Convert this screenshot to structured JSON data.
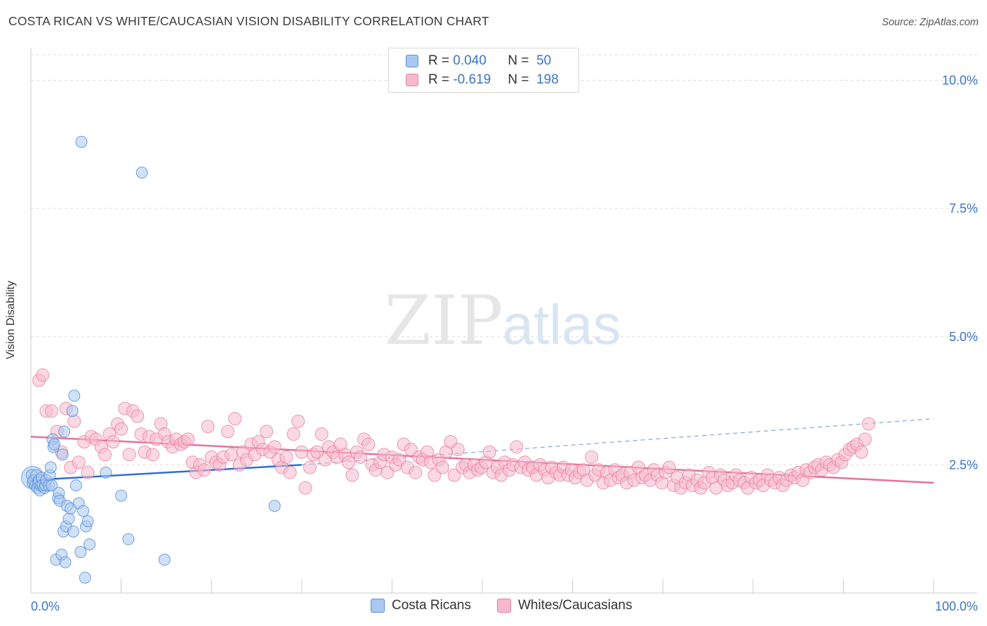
{
  "title": "COSTA RICAN VS WHITE/CAUCASIAN VISION DISABILITY CORRELATION CHART",
  "source": "Source: ZipAtlas.com",
  "watermark": {
    "zip": "ZIP",
    "atlas": "atlas"
  },
  "legend": {
    "rows": [
      {
        "r_label": "R =",
        "r_value": "0.040",
        "n_label": "N =",
        "n_value": "50"
      },
      {
        "r_label": "R =",
        "r_value": "-0.619",
        "n_label": "N =",
        "n_value": "198"
      }
    ]
  },
  "bottom_legend": {
    "series1": "Costa Ricans",
    "series2": "Whites/Caucasians"
  },
  "colors": {
    "blue_fill": "#a9c8f0",
    "blue_stroke": "#5a8fd6",
    "blue_line": "#2f6fd0",
    "pink_fill": "#f6b9cc",
    "pink_stroke": "#e87fa0",
    "pink_line": "#e8709a",
    "tick_label": "#3a75c4",
    "grid": "#dddddd"
  },
  "chart_data": {
    "type": "scatter",
    "title": "COSTA RICAN VS WHITE/CAUCASIAN VISION DISABILITY CORRELATION CHART",
    "xlabel": "",
    "ylabel": "Vision Disability",
    "xlim": [
      0,
      100
    ],
    "ylim": [
      0,
      10.5
    ],
    "x_tick_labels": [
      "0.0%",
      "100.0%"
    ],
    "y_tick_labels": [
      "2.5%",
      "5.0%",
      "7.5%",
      "10.0%"
    ],
    "y_ticks": [
      2.5,
      5.0,
      7.5,
      10.0
    ],
    "grid": true,
    "series": [
      {
        "name": "Costa Ricans",
        "r": 0.04,
        "n": 50,
        "trend": {
          "x": [
            0,
            30
          ],
          "y": [
            2.2,
            2.5
          ],
          "dashed_extension": {
            "x": [
              30,
              100
            ],
            "y": [
              2.5,
              3.4
            ]
          }
        },
        "points": [
          [
            0.1,
            2.3
          ],
          [
            0.2,
            2.15
          ],
          [
            0.3,
            2.2
          ],
          [
            0.5,
            2.1
          ],
          [
            0.6,
            2.3
          ],
          [
            0.7,
            2.05
          ],
          [
            0.8,
            2.15
          ],
          [
            0.9,
            2.2
          ],
          [
            1.0,
            2.0
          ],
          [
            1.1,
            2.1
          ],
          [
            1.2,
            2.25
          ],
          [
            1.3,
            2.1
          ],
          [
            1.5,
            2.05
          ],
          [
            1.6,
            2.1
          ],
          [
            1.7,
            2.2
          ],
          [
            2.0,
            2.1
          ],
          [
            2.1,
            2.3
          ],
          [
            2.2,
            2.45
          ],
          [
            2.3,
            2.1
          ],
          [
            2.4,
            3.0
          ],
          [
            2.5,
            2.85
          ],
          [
            2.6,
            2.9
          ],
          [
            2.8,
            0.65
          ],
          [
            3.0,
            1.85
          ],
          [
            3.1,
            1.95
          ],
          [
            3.2,
            1.8
          ],
          [
            3.4,
            0.75
          ],
          [
            3.5,
            2.7
          ],
          [
            3.6,
            1.2
          ],
          [
            3.7,
            3.15
          ],
          [
            3.8,
            0.6
          ],
          [
            3.9,
            1.3
          ],
          [
            4.0,
            1.7
          ],
          [
            4.2,
            1.45
          ],
          [
            4.4,
            1.65
          ],
          [
            4.6,
            3.55
          ],
          [
            4.7,
            1.2
          ],
          [
            4.8,
            3.85
          ],
          [
            5.0,
            2.1
          ],
          [
            5.3,
            1.75
          ],
          [
            5.5,
            0.8
          ],
          [
            5.6,
            8.8
          ],
          [
            5.8,
            1.6
          ],
          [
            6.0,
            0.3
          ],
          [
            6.1,
            1.3
          ],
          [
            6.3,
            1.4
          ],
          [
            6.5,
            0.95
          ],
          [
            8.3,
            2.35
          ],
          [
            10.0,
            1.9
          ],
          [
            10.8,
            1.05
          ],
          [
            12.3,
            8.2
          ],
          [
            14.8,
            0.65
          ],
          [
            27.0,
            1.7
          ]
        ]
      },
      {
        "name": "Whites/Caucasians",
        "r": -0.619,
        "n": 198,
        "trend": {
          "x": [
            0,
            100
          ],
          "y": [
            3.05,
            2.15
          ]
        },
        "points": [
          [
            0.9,
            4.15
          ],
          [
            1.3,
            4.25
          ],
          [
            1.7,
            3.55
          ],
          [
            2.3,
            3.55
          ],
          [
            2.9,
            3.15
          ],
          [
            3.4,
            2.75
          ],
          [
            3.9,
            3.6
          ],
          [
            4.4,
            2.45
          ],
          [
            4.8,
            3.35
          ],
          [
            5.3,
            2.55
          ],
          [
            5.9,
            2.95
          ],
          [
            6.3,
            2.35
          ],
          [
            6.7,
            3.05
          ],
          [
            7.2,
            3.0
          ],
          [
            7.8,
            2.85
          ],
          [
            8.2,
            2.7
          ],
          [
            8.7,
            3.1
          ],
          [
            9.1,
            2.95
          ],
          [
            9.6,
            3.3
          ],
          [
            10.0,
            3.2
          ],
          [
            10.4,
            3.6
          ],
          [
            10.9,
            2.7
          ],
          [
            11.3,
            3.55
          ],
          [
            11.8,
            3.45
          ],
          [
            12.2,
            3.1
          ],
          [
            12.6,
            2.75
          ],
          [
            13.1,
            3.05
          ],
          [
            13.5,
            2.7
          ],
          [
            13.9,
            3.0
          ],
          [
            14.4,
            3.3
          ],
          [
            14.8,
            3.1
          ],
          [
            15.2,
            2.95
          ],
          [
            15.7,
            2.85
          ],
          [
            16.1,
            3.0
          ],
          [
            16.6,
            2.9
          ],
          [
            17.0,
            2.95
          ],
          [
            17.4,
            3.0
          ],
          [
            17.9,
            2.55
          ],
          [
            18.3,
            2.35
          ],
          [
            18.7,
            2.5
          ],
          [
            19.2,
            2.4
          ],
          [
            19.6,
            3.25
          ],
          [
            20.0,
            2.65
          ],
          [
            20.5,
            2.55
          ],
          [
            20.9,
            2.5
          ],
          [
            21.3,
            2.65
          ],
          [
            21.8,
            3.15
          ],
          [
            22.2,
            2.7
          ],
          [
            22.6,
            3.4
          ],
          [
            23.1,
            2.5
          ],
          [
            23.5,
            2.75
          ],
          [
            23.9,
            2.6
          ],
          [
            24.4,
            2.9
          ],
          [
            24.8,
            2.7
          ],
          [
            25.2,
            2.95
          ],
          [
            25.7,
            2.8
          ],
          [
            26.1,
            3.15
          ],
          [
            26.5,
            2.75
          ],
          [
            27.0,
            2.85
          ],
          [
            27.4,
            2.6
          ],
          [
            27.8,
            2.45
          ],
          [
            28.3,
            2.65
          ],
          [
            28.7,
            2.35
          ],
          [
            29.1,
            3.1
          ],
          [
            29.6,
            3.35
          ],
          [
            30.0,
            2.75
          ],
          [
            30.4,
            2.05
          ],
          [
            30.9,
            2.45
          ],
          [
            31.3,
            2.7
          ],
          [
            31.7,
            2.75
          ],
          [
            32.2,
            3.1
          ],
          [
            32.6,
            2.6
          ],
          [
            33.0,
            2.85
          ],
          [
            33.5,
            2.75
          ],
          [
            33.9,
            2.65
          ],
          [
            34.3,
            2.9
          ],
          [
            34.8,
            2.7
          ],
          [
            35.2,
            2.55
          ],
          [
            35.6,
            2.3
          ],
          [
            36.1,
            2.75
          ],
          [
            36.5,
            2.65
          ],
          [
            36.9,
            3.0
          ],
          [
            37.4,
            2.9
          ],
          [
            37.8,
            2.5
          ],
          [
            38.2,
            2.4
          ],
          [
            38.7,
            2.55
          ],
          [
            39.1,
            2.7
          ],
          [
            39.5,
            2.35
          ],
          [
            40.0,
            2.65
          ],
          [
            40.4,
            2.5
          ],
          [
            40.8,
            2.6
          ],
          [
            41.3,
            2.9
          ],
          [
            41.7,
            2.45
          ],
          [
            42.1,
            2.8
          ],
          [
            42.6,
            2.35
          ],
          [
            43.0,
            2.65
          ],
          [
            43.4,
            2.6
          ],
          [
            43.9,
            2.75
          ],
          [
            44.3,
            2.55
          ],
          [
            44.7,
            2.3
          ],
          [
            45.2,
            2.6
          ],
          [
            45.6,
            2.45
          ],
          [
            46.0,
            2.75
          ],
          [
            46.5,
            2.95
          ],
          [
            46.9,
            2.3
          ],
          [
            47.3,
            2.8
          ],
          [
            47.8,
            2.45
          ],
          [
            48.2,
            2.5
          ],
          [
            48.6,
            2.35
          ],
          [
            49.1,
            2.5
          ],
          [
            49.5,
            2.4
          ],
          [
            49.9,
            2.45
          ],
          [
            50.4,
            2.55
          ],
          [
            50.8,
            2.75
          ],
          [
            51.2,
            2.35
          ],
          [
            51.7,
            2.45
          ],
          [
            52.1,
            2.3
          ],
          [
            52.5,
            2.55
          ],
          [
            53.0,
            2.4
          ],
          [
            53.4,
            2.5
          ],
          [
            53.8,
            2.85
          ],
          [
            54.3,
            2.45
          ],
          [
            54.7,
            2.55
          ],
          [
            55.1,
            2.4
          ],
          [
            55.6,
            2.45
          ],
          [
            56.0,
            2.3
          ],
          [
            56.4,
            2.5
          ],
          [
            56.9,
            2.4
          ],
          [
            57.3,
            2.25
          ],
          [
            57.7,
            2.45
          ],
          [
            58.2,
            2.35
          ],
          [
            58.6,
            2.3
          ],
          [
            59.0,
            2.45
          ],
          [
            59.5,
            2.3
          ],
          [
            59.9,
            2.4
          ],
          [
            60.3,
            2.25
          ],
          [
            60.8,
            2.35
          ],
          [
            61.2,
            2.4
          ],
          [
            61.6,
            2.2
          ],
          [
            62.1,
            2.65
          ],
          [
            62.5,
            2.3
          ],
          [
            62.9,
            2.4
          ],
          [
            63.4,
            2.15
          ],
          [
            63.8,
            2.35
          ],
          [
            64.2,
            2.2
          ],
          [
            64.7,
            2.4
          ],
          [
            65.1,
            2.25
          ],
          [
            65.5,
            2.3
          ],
          [
            66.0,
            2.15
          ],
          [
            66.4,
            2.35
          ],
          [
            66.8,
            2.2
          ],
          [
            67.3,
            2.45
          ],
          [
            67.7,
            2.25
          ],
          [
            68.1,
            2.3
          ],
          [
            68.6,
            2.2
          ],
          [
            69.0,
            2.4
          ],
          [
            69.4,
            2.3
          ],
          [
            69.9,
            2.15
          ],
          [
            70.3,
            2.35
          ],
          [
            70.7,
            2.45
          ],
          [
            71.2,
            2.1
          ],
          [
            71.6,
            2.25
          ],
          [
            72.0,
            2.05
          ],
          [
            72.5,
            2.15
          ],
          [
            72.9,
            2.3
          ],
          [
            73.3,
            2.1
          ],
          [
            73.8,
            2.2
          ],
          [
            74.2,
            2.05
          ],
          [
            74.6,
            2.15
          ],
          [
            75.1,
            2.35
          ],
          [
            75.5,
            2.25
          ],
          [
            75.9,
            2.05
          ],
          [
            76.4,
            2.3
          ],
          [
            76.8,
            2.2
          ],
          [
            77.2,
            2.1
          ],
          [
            77.7,
            2.15
          ],
          [
            78.1,
            2.3
          ],
          [
            78.5,
            2.2
          ],
          [
            79.0,
            2.15
          ],
          [
            79.4,
            2.05
          ],
          [
            79.8,
            2.25
          ],
          [
            80.3,
            2.15
          ],
          [
            80.7,
            2.2
          ],
          [
            81.1,
            2.1
          ],
          [
            81.6,
            2.3
          ],
          [
            82.0,
            2.2
          ],
          [
            82.4,
            2.15
          ],
          [
            82.9,
            2.25
          ],
          [
            83.3,
            2.1
          ],
          [
            83.7,
            2.2
          ],
          [
            84.2,
            2.3
          ],
          [
            84.6,
            2.25
          ],
          [
            85.0,
            2.35
          ],
          [
            85.5,
            2.2
          ],
          [
            85.9,
            2.4
          ],
          [
            86.3,
            2.35
          ],
          [
            86.8,
            2.45
          ],
          [
            87.2,
            2.5
          ],
          [
            87.6,
            2.4
          ],
          [
            88.1,
            2.55
          ],
          [
            88.5,
            2.5
          ],
          [
            88.9,
            2.45
          ],
          [
            89.4,
            2.6
          ],
          [
            89.8,
            2.55
          ],
          [
            90.2,
            2.7
          ],
          [
            90.7,
            2.8
          ],
          [
            91.1,
            2.85
          ],
          [
            91.5,
            2.9
          ],
          [
            92.0,
            2.75
          ],
          [
            92.4,
            3.0
          ],
          [
            92.8,
            3.3
          ]
        ]
      }
    ]
  }
}
